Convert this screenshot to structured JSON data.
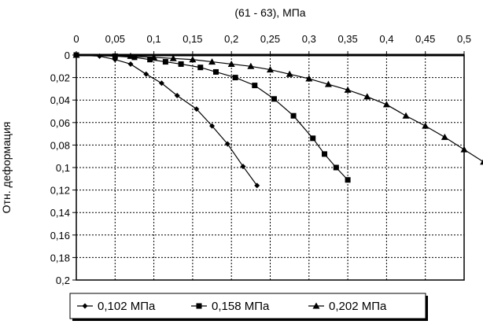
{
  "chart_data": {
    "type": "line",
    "title": "",
    "xlabel": "(61 - 63), МПа",
    "ylabel": "Отн. деформация",
    "x_axis_position": "top",
    "y_axis_inverted": true,
    "xlim": [
      0,
      0.5
    ],
    "ylim": [
      0,
      0.2
    ],
    "grid": true,
    "legend_position": "bottom",
    "x_ticks": [
      "0",
      "0,05",
      "0,1",
      "0,15",
      "0,2",
      "0,25",
      "0,3",
      "0,35",
      "0,4",
      "0,45",
      "0,5"
    ],
    "y_ticks": [
      "0",
      "0,02",
      "0,04",
      "0,06",
      "0,08",
      "0,1",
      "0,12",
      "0,14",
      "0,16",
      "0,18",
      "0,2"
    ],
    "series": [
      {
        "name": "0,102 МПа",
        "marker": "diamond",
        "x": [
          0,
          0.03,
          0.05,
          0.07,
          0.09,
          0.11,
          0.13,
          0.155,
          0.175,
          0.195,
          0.215,
          0.233
        ],
        "y": [
          0,
          0.001,
          0.004,
          0.008,
          0.017,
          0.025,
          0.036,
          0.048,
          0.063,
          0.079,
          0.099,
          0.116
        ]
      },
      {
        "name": "0,158 МПа",
        "marker": "square",
        "x": [
          0,
          0.05,
          0.075,
          0.095,
          0.115,
          0.135,
          0.16,
          0.18,
          0.205,
          0.23,
          0.255,
          0.28,
          0.305,
          0.32,
          0.335,
          0.35
        ],
        "y": [
          0,
          0.001,
          0.002,
          0.004,
          0.006,
          0.008,
          0.011,
          0.015,
          0.02,
          0.027,
          0.039,
          0.054,
          0.074,
          0.088,
          0.1,
          0.111
        ]
      },
      {
        "name": "0,202 МПа",
        "marker": "triangle",
        "x": [
          0,
          0.07,
          0.1,
          0.125,
          0.15,
          0.175,
          0.2,
          0.225,
          0.25,
          0.275,
          0.3,
          0.325,
          0.35,
          0.375,
          0.4,
          0.425,
          0.45,
          0.475,
          0.5,
          0.525
        ],
        "y": [
          0,
          0.001,
          0.002,
          0.003,
          0.004,
          0.006,
          0.008,
          0.01,
          0.013,
          0.017,
          0.021,
          0.026,
          0.031,
          0.037,
          0.044,
          0.054,
          0.063,
          0.073,
          0.084,
          0.095
        ]
      }
    ]
  }
}
